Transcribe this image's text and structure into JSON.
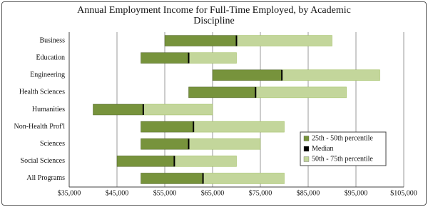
{
  "chart_data": {
    "type": "floating_bar",
    "title": "Annual Employment Income for Full-Time Employed, by Academic Discipline",
    "categories": [
      "Business",
      "Education",
      "Engineering",
      "Health Sciences",
      "Humanities",
      "Non-Health Prof'l",
      "Sciences",
      "Social Sciences",
      "All Programs"
    ],
    "series": [
      {
        "name": "25th - 50th percentile",
        "color": "#77933c",
        "values": [
          55000,
          50000,
          65000,
          60000,
          40000,
          50000,
          50000,
          45000,
          50000
        ]
      },
      {
        "name": "Median",
        "color": "#000000",
        "values": [
          70000,
          60000,
          79500,
          74000,
          50500,
          61000,
          60000,
          57000,
          63000
        ]
      },
      {
        "name": "50th - 75th percentile",
        "color": "#c3d69b",
        "values": [
          90000,
          70000,
          100000,
          93000,
          65000,
          80000,
          75000,
          70000,
          80000
        ]
      }
    ],
    "xlim": [
      35000,
      105000
    ],
    "xticks": [
      {
        "value": 35000,
        "label": "$35,000"
      },
      {
        "value": 45000,
        "label": "$45,000"
      },
      {
        "value": 55000,
        "label": "$55,000"
      },
      {
        "value": 65000,
        "label": "$65,000"
      },
      {
        "value": 75000,
        "label": "$75,000"
      },
      {
        "value": 85000,
        "label": "$85,000"
      },
      {
        "value": 95000,
        "label": "$95,000"
      },
      {
        "value": 105000,
        "label": "$105,000"
      }
    ],
    "grid": true,
    "legend": "lower right"
  }
}
